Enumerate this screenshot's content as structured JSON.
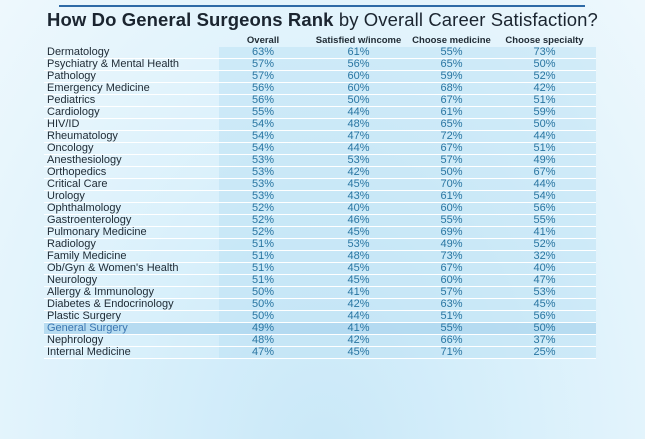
{
  "chart_data": {
    "type": "table",
    "title_bold": "How Do General Surgeons Rank",
    "title_rest": " by Overall Career Satisfaction?",
    "columns": [
      "Overall",
      "Satisfied w/income",
      "Choose medicine",
      "Choose specialty"
    ],
    "highlight": "General Surgery",
    "rows": [
      {
        "name": "Dermatology",
        "values": [
          "63%",
          "61%",
          "55%",
          "73%"
        ]
      },
      {
        "name": "Psychiatry & Mental Health",
        "values": [
          "57%",
          "56%",
          "65%",
          "50%"
        ]
      },
      {
        "name": "Pathology",
        "values": [
          "57%",
          "60%",
          "59%",
          "52%"
        ]
      },
      {
        "name": "Emergency Medicine",
        "values": [
          "56%",
          "60%",
          "68%",
          "42%"
        ]
      },
      {
        "name": "Pediatrics",
        "values": [
          "56%",
          "50%",
          "67%",
          "51%"
        ]
      },
      {
        "name": "Cardiology",
        "values": [
          "55%",
          "44%",
          "61%",
          "59%"
        ]
      },
      {
        "name": "HIV/ID",
        "values": [
          "54%",
          "48%",
          "65%",
          "50%"
        ]
      },
      {
        "name": "Rheumatology",
        "values": [
          "54%",
          "47%",
          "72%",
          "44%"
        ]
      },
      {
        "name": "Oncology",
        "values": [
          "54%",
          "44%",
          "67%",
          "51%"
        ]
      },
      {
        "name": "Anesthesiology",
        "values": [
          "53%",
          "53%",
          "57%",
          "49%"
        ]
      },
      {
        "name": "Orthopedics",
        "values": [
          "53%",
          "42%",
          "50%",
          "67%"
        ]
      },
      {
        "name": "Critical Care",
        "values": [
          "53%",
          "45%",
          "70%",
          "44%"
        ]
      },
      {
        "name": "Urology",
        "values": [
          "53%",
          "43%",
          "61%",
          "54%"
        ]
      },
      {
        "name": "Ophthalmology",
        "values": [
          "52%",
          "40%",
          "60%",
          "56%"
        ]
      },
      {
        "name": "Gastroenterology",
        "values": [
          "52%",
          "46%",
          "55%",
          "55%"
        ]
      },
      {
        "name": "Pulmonary Medicine",
        "values": [
          "52%",
          "45%",
          "69%",
          "41%"
        ]
      },
      {
        "name": "Radiology",
        "values": [
          "51%",
          "53%",
          "49%",
          "52%"
        ]
      },
      {
        "name": "Family Medicine",
        "values": [
          "51%",
          "48%",
          "73%",
          "32%"
        ]
      },
      {
        "name": "Ob/Gyn & Women's Health",
        "values": [
          "51%",
          "45%",
          "67%",
          "40%"
        ]
      },
      {
        "name": "Neurology",
        "values": [
          "51%",
          "45%",
          "60%",
          "47%"
        ]
      },
      {
        "name": "Allergy & Immunology",
        "values": [
          "50%",
          "41%",
          "57%",
          "53%"
        ]
      },
      {
        "name": "Diabetes & Endocrinology",
        "values": [
          "50%",
          "42%",
          "63%",
          "45%"
        ]
      },
      {
        "name": "Plastic Surgery",
        "values": [
          "50%",
          "44%",
          "51%",
          "56%"
        ]
      },
      {
        "name": "General Surgery",
        "values": [
          "49%",
          "41%",
          "55%",
          "50%"
        ]
      },
      {
        "name": "Nephrology",
        "values": [
          "48%",
          "42%",
          "66%",
          "37%"
        ]
      },
      {
        "name": "Internal Medicine",
        "values": [
          "47%",
          "45%",
          "71%",
          "25%"
        ]
      }
    ]
  }
}
